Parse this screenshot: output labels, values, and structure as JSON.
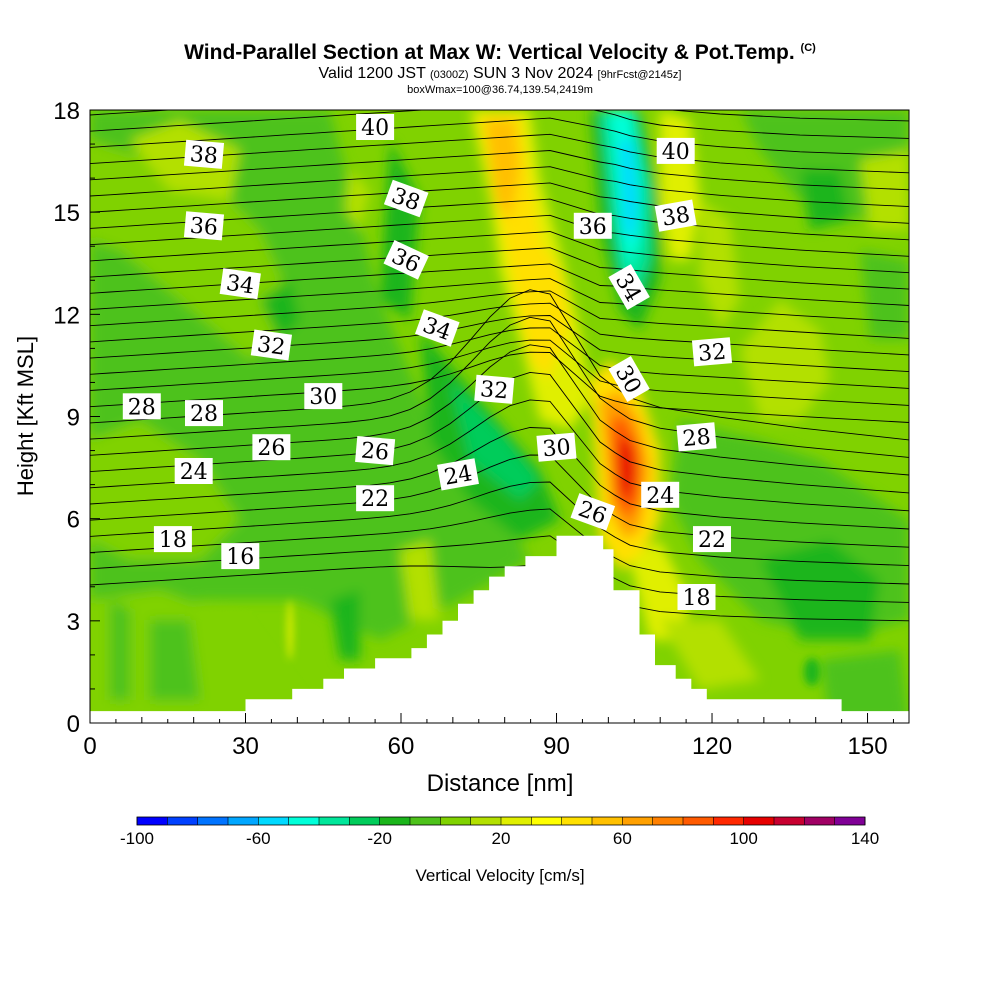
{
  "header": {
    "title": "Wind-Parallel Section at Max W: Vertical Velocity & Pot.Temp.",
    "title_mark": "(C)",
    "subtitle_main": "Valid 1200 JST",
    "subtitle_utc": "(0300Z)",
    "subtitle_date": "SUN 3 Nov 2024",
    "subtitle_fcst": "[9hrFcst@2145z]",
    "subtitle2": "boxWmax=100@36.74,139.54,2419m"
  },
  "chart_data": {
    "type": "heatmap",
    "xlabel": "Distance [nm]",
    "ylabel": "Height [Kft MSL]",
    "xlim": [
      0,
      158
    ],
    "ylim": [
      0,
      18
    ],
    "x_ticks": [
      0,
      30,
      60,
      90,
      120,
      150
    ],
    "y_ticks": [
      0,
      3,
      6,
      9,
      12,
      15,
      18
    ],
    "colorbar": {
      "label": "Vertical Velocity [cm/s]",
      "min": -100,
      "max": 140,
      "step": 10,
      "tick_labels": [
        -100,
        -60,
        -20,
        20,
        60,
        100,
        140
      ],
      "colors": [
        "#0000ff",
        "#0040ff",
        "#0073ff",
        "#00a6ff",
        "#00d9ff",
        "#00ffd9",
        "#00e69a",
        "#00cc5a",
        "#1ab51a",
        "#4dc21a",
        "#80d200",
        "#b3e000",
        "#e0ef00",
        "#ffff00",
        "#ffe000",
        "#ffc000",
        "#ffa000",
        "#ff8000",
        "#ff5a00",
        "#ff2800",
        "#e60000",
        "#c80030",
        "#a00064",
        "#800096"
      ]
    },
    "terrain_top_kft": [
      [
        0,
        0.35
      ],
      [
        30,
        0.35
      ],
      [
        30,
        0.7
      ],
      [
        39,
        0.7
      ],
      [
        39,
        1.0
      ],
      [
        45,
        1.0
      ],
      [
        45,
        1.3
      ],
      [
        49,
        1.3
      ],
      [
        49,
        1.6
      ],
      [
        55,
        1.6
      ],
      [
        55,
        1.9
      ],
      [
        62,
        1.9
      ],
      [
        62,
        2.2
      ],
      [
        65,
        2.2
      ],
      [
        65,
        2.6
      ],
      [
        68,
        2.6
      ],
      [
        68,
        3.0
      ],
      [
        71,
        3.0
      ],
      [
        71,
        3.5
      ],
      [
        74,
        3.5
      ],
      [
        74,
        3.9
      ],
      [
        77,
        3.9
      ],
      [
        77,
        4.3
      ],
      [
        80,
        4.3
      ],
      [
        80,
        4.6
      ],
      [
        84,
        4.6
      ],
      [
        84,
        4.9
      ],
      [
        90,
        4.9
      ],
      [
        90,
        5.5
      ],
      [
        99,
        5.5
      ],
      [
        99,
        5.1
      ],
      [
        101,
        5.1
      ],
      [
        101,
        3.9
      ],
      [
        106,
        3.9
      ],
      [
        106,
        2.6
      ],
      [
        109,
        2.6
      ],
      [
        109,
        1.7
      ],
      [
        113,
        1.7
      ],
      [
        113,
        1.3
      ],
      [
        116,
        1.3
      ],
      [
        116,
        1.0
      ],
      [
        119,
        1.0
      ],
      [
        119,
        0.7
      ],
      [
        145,
        0.7
      ],
      [
        145,
        0.35
      ],
      [
        158,
        0.35
      ]
    ],
    "contour_labels": [
      {
        "text": "40",
        "x": 55,
        "y": 17.5,
        "angle": 0
      },
      {
        "text": "38",
        "x": 22,
        "y": 16.7,
        "angle": 5
      },
      {
        "text": "36",
        "x": 22,
        "y": 14.6,
        "angle": 5
      },
      {
        "text": "34",
        "x": 29,
        "y": 12.9,
        "angle": 8
      },
      {
        "text": "32",
        "x": 35,
        "y": 11.1,
        "angle": 8
      },
      {
        "text": "30",
        "x": 45,
        "y": 9.6,
        "angle": 0
      },
      {
        "text": "28",
        "x": 10,
        "y": 9.3,
        "angle": 0
      },
      {
        "text": "28",
        "x": 22,
        "y": 9.1,
        "angle": 0
      },
      {
        "text": "26",
        "x": 35,
        "y": 8.1,
        "angle": 0
      },
      {
        "text": "24",
        "x": 20,
        "y": 7.4,
        "angle": 0
      },
      {
        "text": "26",
        "x": 55,
        "y": 8.0,
        "angle": 5
      },
      {
        "text": "22",
        "x": 55,
        "y": 6.6,
        "angle": 0
      },
      {
        "text": "18",
        "x": 16,
        "y": 5.4,
        "angle": 0
      },
      {
        "text": "16",
        "x": 29,
        "y": 4.9,
        "angle": 0
      },
      {
        "text": "38",
        "x": 61,
        "y": 15.4,
        "angle": 20
      },
      {
        "text": "36",
        "x": 61,
        "y": 13.6,
        "angle": 25
      },
      {
        "text": "34",
        "x": 67,
        "y": 11.6,
        "angle": 20
      },
      {
        "text": "32",
        "x": 78,
        "y": 9.8,
        "angle": 5
      },
      {
        "text": "24",
        "x": 71,
        "y": 7.3,
        "angle": -10
      },
      {
        "text": "30",
        "x": 90,
        "y": 8.1,
        "angle": -5
      },
      {
        "text": "26",
        "x": 97,
        "y": 6.2,
        "angle": 20
      },
      {
        "text": "36",
        "x": 97,
        "y": 14.6,
        "angle": 0
      },
      {
        "text": "34",
        "x": 104,
        "y": 12.8,
        "angle": 60
      },
      {
        "text": "30",
        "x": 104,
        "y": 10.1,
        "angle": 60
      },
      {
        "text": "40",
        "x": 113,
        "y": 16.8,
        "angle": 0
      },
      {
        "text": "38",
        "x": 113,
        "y": 14.9,
        "angle": -10
      },
      {
        "text": "32",
        "x": 120,
        "y": 10.9,
        "angle": -5
      },
      {
        "text": "28",
        "x": 117,
        "y": 8.4,
        "angle": -5
      },
      {
        "text": "24",
        "x": 110,
        "y": 6.7,
        "angle": 0
      },
      {
        "text": "22",
        "x": 120,
        "y": 5.4,
        "angle": 0
      },
      {
        "text": "18",
        "x": 117,
        "y": 3.7,
        "angle": 0
      }
    ]
  }
}
